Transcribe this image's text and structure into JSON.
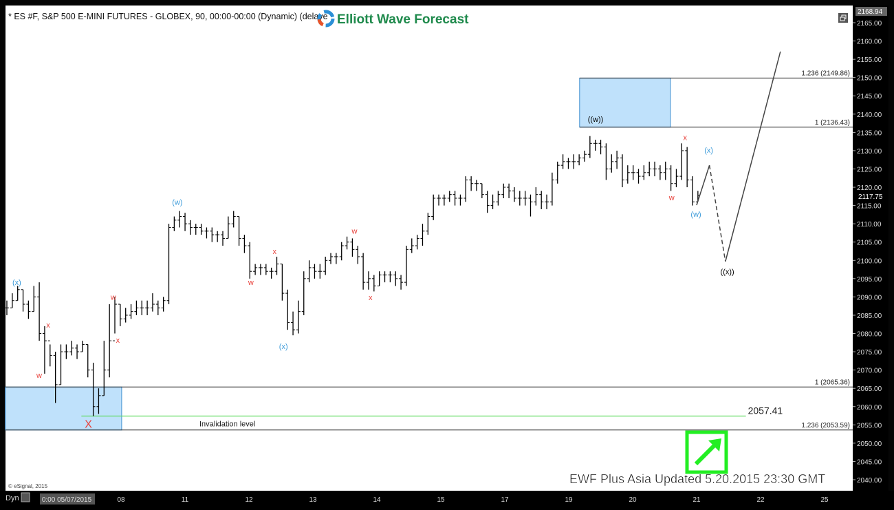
{
  "header": {
    "title": "* ES #F, S&P 500 E-MINI FUTURES - GLOBEX, 90, 00:00-00:00 (Dynamic) (delaye",
    "logo_text": "Elliott Wave Forecast",
    "restore_icon": "window-restore-icon"
  },
  "footer": {
    "copyright": "© eSignal, 2015",
    "dyn_label": "Dyn",
    "watermark": "EWF Plus Asia Updated 5.20.2015 23:30 GMT",
    "arrow_icon": "green-up-right-arrow-icon"
  },
  "colors": {
    "background": "#ffffff",
    "frame": "#000000",
    "bar": "#000000",
    "wave_red": "#e8403a",
    "wave_blue": "#3a9ad9",
    "wave_black": "#000000",
    "box_fill": "#bfe1fb",
    "box_stroke": "#3d8ed0",
    "invalidation": "#5fdc5f",
    "arrow_green": "#22ee22"
  },
  "chart_data": {
    "type": "ohlc",
    "symbol": "ES #F",
    "interval": "90",
    "ylim": [
      2037.5,
      2168.94
    ],
    "y_ticks": [
      2040,
      2045,
      2050,
      2055,
      2060,
      2065,
      2070,
      2075,
      2080,
      2085,
      2090,
      2095,
      2100,
      2105,
      2110,
      2115,
      2120,
      2125,
      2130,
      2135,
      2140,
      2145,
      2150,
      2155,
      2160,
      2165
    ],
    "y_tick_labels": [
      "2040.00",
      "2045.00",
      "2050.00",
      "2055.00",
      "2060.00",
      "2065.00",
      "2070.00",
      "2075.00",
      "2080.00",
      "2085.00",
      "2090.00",
      "2095.00",
      "2100.00",
      "2105.00",
      "2110.00",
      "2115.00",
      "2120.00",
      "2125.00",
      "2130.00",
      "2135.00",
      "2140.00",
      "2145.00",
      "2150.00",
      "2155.00",
      "2160.00",
      "2165.00"
    ],
    "top_price_label": "2168.94",
    "last_price_label": "2117.75",
    "last_price": 2117.75,
    "x_ticks": [
      {
        "session": 0,
        "label": "0:00 05/07/2015",
        "highlight": true
      },
      {
        "session": 1,
        "label": "08"
      },
      {
        "session": 2,
        "label": "11"
      },
      {
        "session": 3,
        "label": "12"
      },
      {
        "session": 4,
        "label": "13"
      },
      {
        "session": 5,
        "label": "14"
      },
      {
        "session": 6,
        "label": "15"
      },
      {
        "session": 7,
        "label": "17"
      },
      {
        "session": 8,
        "label": "19"
      },
      {
        "session": 9,
        "label": "20"
      },
      {
        "session": 10,
        "label": "21"
      },
      {
        "session": 11,
        "label": "22"
      },
      {
        "session": 12,
        "label": "25"
      }
    ],
    "bars_hlc": [
      [
        2089,
        2085,
        2087
      ],
      [
        2091,
        2087,
        2089
      ],
      [
        2093,
        2089,
        2092
      ],
      [
        2092,
        2086,
        2088
      ],
      [
        2089,
        2084,
        2086
      ],
      [
        2093,
        2086,
        2090
      ],
      [
        2094,
        2078,
        2080
      ],
      [
        2082,
        2069,
        2078
      ],
      [
        2077,
        2071,
        2074
      ],
      [
        2075,
        2061,
        2066
      ],
      [
        2077,
        2066,
        2075
      ],
      [
        2077,
        2073,
        2075
      ],
      [
        2078,
        2074,
        2076
      ],
      [
        2077,
        2073,
        2075
      ],
      [
        2078,
        2075,
        2077
      ],
      [
        2077,
        2068,
        2070
      ],
      [
        2072,
        2057.4,
        2060
      ],
      [
        2065,
        2058,
        2063
      ],
      [
        2078,
        2063,
        2070
      ],
      [
        2088,
        2068,
        2078
      ],
      [
        2090,
        2080,
        2088
      ],
      [
        2088,
        2082,
        2084
      ],
      [
        2087,
        2083,
        2085
      ],
      [
        2088,
        2084,
        2086
      ],
      [
        2089,
        2085,
        2087
      ],
      [
        2089,
        2085,
        2087
      ],
      [
        2089,
        2085,
        2087
      ],
      [
        2091,
        2086,
        2088
      ],
      [
        2089,
        2085,
        2087
      ],
      [
        2090,
        2086,
        2089
      ],
      [
        2110,
        2088,
        2109
      ],
      [
        2112,
        2108,
        2111
      ],
      [
        2113.5,
        2109,
        2112
      ],
      [
        2113,
        2108,
        2110
      ],
      [
        2111,
        2107,
        2109
      ],
      [
        2110,
        2107,
        2109
      ],
      [
        2110,
        2107,
        2108
      ],
      [
        2109,
        2106,
        2108
      ],
      [
        2109,
        2105,
        2107
      ],
      [
        2108,
        2105,
        2107
      ],
      [
        2108,
        2104,
        2106
      ],
      [
        2112,
        2106,
        2110
      ],
      [
        2113.5,
        2109,
        2112
      ],
      [
        2112,
        2104,
        2106
      ],
      [
        2107,
        2102,
        2104
      ],
      [
        2105,
        2095,
        2097
      ],
      [
        2099,
        2096,
        2098
      ],
      [
        2099,
        2096,
        2098
      ],
      [
        2099,
        2096,
        2097
      ],
      [
        2098,
        2095,
        2097
      ],
      [
        2101,
        2096,
        2099
      ],
      [
        2099,
        2089,
        2091
      ],
      [
        2092,
        2081,
        2083
      ],
      [
        2086,
        2079.5,
        2081
      ],
      [
        2089,
        2080,
        2086
      ],
      [
        2097,
        2085,
        2095
      ],
      [
        2100,
        2094,
        2098
      ],
      [
        2099,
        2095,
        2097
      ],
      [
        2099,
        2095,
        2097
      ],
      [
        2101,
        2096,
        2100
      ],
      [
        2102,
        2099,
        2101
      ],
      [
        2102,
        2099,
        2101
      ],
      [
        2105,
        2100,
        2104
      ],
      [
        2106.5,
        2103,
        2105
      ],
      [
        2106,
        2101,
        2103
      ],
      [
        2104,
        2099,
        2101
      ],
      [
        2102,
        2092,
        2094
      ],
      [
        2097,
        2092,
        2095
      ],
      [
        2096,
        2091.5,
        2093
      ],
      [
        2097,
        2093,
        2096
      ],
      [
        2097,
        2094,
        2096
      ],
      [
        2097,
        2094,
        2096
      ],
      [
        2097,
        2093,
        2095
      ],
      [
        2096,
        2092,
        2094
      ],
      [
        2104,
        2093,
        2103
      ],
      [
        2106,
        2102,
        2104
      ],
      [
        2107,
        2103,
        2106
      ],
      [
        2110,
        2104,
        2108
      ],
      [
        2113,
        2107,
        2112
      ],
      [
        2118,
        2111,
        2117
      ],
      [
        2118,
        2115,
        2117
      ],
      [
        2118,
        2115,
        2117
      ],
      [
        2119,
        2116,
        2118
      ],
      [
        2119,
        2115,
        2117
      ],
      [
        2118,
        2115,
        2117
      ],
      [
        2123,
        2116,
        2122
      ],
      [
        2123,
        2119,
        2121
      ],
      [
        2122,
        2119,
        2121
      ],
      [
        2121,
        2117,
        2118
      ],
      [
        2119,
        2113,
        2115
      ],
      [
        2118,
        2114,
        2116
      ],
      [
        2119,
        2115,
        2118
      ],
      [
        2121,
        2117,
        2120
      ],
      [
        2121,
        2117,
        2119
      ],
      [
        2120,
        2116,
        2117
      ],
      [
        2119,
        2115,
        2117
      ],
      [
        2119,
        2115,
        2117
      ],
      [
        2118,
        2112,
        2116
      ],
      [
        2120,
        2115,
        2118
      ],
      [
        2119,
        2114,
        2116
      ],
      [
        2118,
        2114,
        2116
      ],
      [
        2124,
        2115,
        2122
      ],
      [
        2127,
        2121,
        2126
      ],
      [
        2129,
        2125,
        2127
      ],
      [
        2128,
        2125,
        2127
      ],
      [
        2129,
        2125,
        2127
      ],
      [
        2129,
        2126,
        2128
      ],
      [
        2130,
        2127,
        2129
      ],
      [
        2134,
        2128,
        2132
      ],
      [
        2133,
        2130,
        2132
      ],
      [
        2133,
        2129,
        2131
      ],
      [
        2132,
        2122,
        2125
      ],
      [
        2129,
        2124,
        2127
      ],
      [
        2130,
        2125,
        2128
      ],
      [
        2129,
        2120,
        2122
      ],
      [
        2126,
        2121,
        2124
      ],
      [
        2126,
        2122,
        2124
      ],
      [
        2125,
        2121,
        2123
      ],
      [
        2126,
        2122,
        2124
      ],
      [
        2127,
        2123,
        2125
      ],
      [
        2127,
        2123,
        2125
      ],
      [
        2126,
        2122,
        2124
      ],
      [
        2127,
        2122,
        2125
      ],
      [
        2126,
        2119,
        2121
      ],
      [
        2125,
        2120,
        2123
      ],
      [
        2132,
        2122,
        2130
      ],
      [
        2131,
        2120,
        2122
      ],
      [
        2123,
        2115,
        2116
      ],
      [
        2119,
        2116,
        2117.75
      ]
    ],
    "projection": {
      "solid_1": [
        [
          10.0,
          2115.1
        ],
        [
          10.2,
          2126.0
        ]
      ],
      "dashed": [
        [
          10.2,
          2126.0
        ],
        [
          10.45,
          2099.7
        ]
      ],
      "solid_2": [
        [
          10.45,
          2099.7
        ],
        [
          11.31,
          2157.1
        ]
      ]
    },
    "wave_labels": [
      {
        "text": "(x)",
        "session": -0.63,
        "price": 2094,
        "color": "blue"
      },
      {
        "text": "x",
        "session": -0.14,
        "price": 2082.4,
        "color": "red"
      },
      {
        "text": "w",
        "session": -0.28,
        "price": 2068.6,
        "color": "red"
      },
      {
        "text": "X",
        "session": 0.49,
        "price": 2055,
        "color": "red",
        "large": true
      },
      {
        "text": "w",
        "session": 0.88,
        "price": 2090,
        "color": "red"
      },
      {
        "text": "x",
        "session": 0.95,
        "price": 2078.2,
        "color": "red"
      },
      {
        "text": "(w)",
        "session": 1.88,
        "price": 2116,
        "color": "blue"
      },
      {
        "text": "w",
        "session": 3.03,
        "price": 2094,
        "color": "red"
      },
      {
        "text": "x",
        "session": 3.4,
        "price": 2102.5,
        "color": "red"
      },
      {
        "text": "(x)",
        "session": 3.54,
        "price": 2076.5,
        "color": "blue"
      },
      {
        "text": "w",
        "session": 4.65,
        "price": 2108.1,
        "color": "red"
      },
      {
        "text": "x",
        "session": 4.9,
        "price": 2089.9,
        "color": "red"
      },
      {
        "text": "((w))",
        "session": 8.42,
        "price": 2138.6,
        "color": "black"
      },
      {
        "text": "x",
        "session": 9.82,
        "price": 2133.7,
        "color": "red"
      },
      {
        "text": "(x)",
        "session": 10.19,
        "price": 2130.2,
        "color": "blue"
      },
      {
        "text": "w",
        "session": 9.61,
        "price": 2117.2,
        "color": "red"
      },
      {
        "text": "(w)",
        "session": 9.99,
        "price": 2112.7,
        "color": "blue"
      },
      {
        "text": "((x))",
        "session": 10.48,
        "price": 2096.9,
        "color": "black"
      }
    ],
    "target_boxes": [
      {
        "session_start": 8.17,
        "session_end": 9.59,
        "price_low": 2136.43,
        "price_high": 2149.86
      },
      {
        "session_start": -0.81,
        "session_end": 1.01,
        "price_low": 2053.59,
        "price_high": 2065.36
      }
    ],
    "fib_levels": [
      {
        "label": "1.236 (2149.86)",
        "price": 2149.86,
        "session_start": 8.17
      },
      {
        "label": "1 (2136.43)",
        "price": 2136.43,
        "session_start": 8.17
      },
      {
        "label": "1 (2065.36)",
        "price": 2065.36,
        "session_start": -0.81
      },
      {
        "label": "1.236 (2053.59)",
        "price": 2053.59,
        "session_start": -0.81
      }
    ],
    "invalidation": {
      "price": 2057.41,
      "value_label": "2057.41",
      "text": "Invalidation level",
      "session_start": 0.38,
      "session_end": 10.77
    }
  }
}
